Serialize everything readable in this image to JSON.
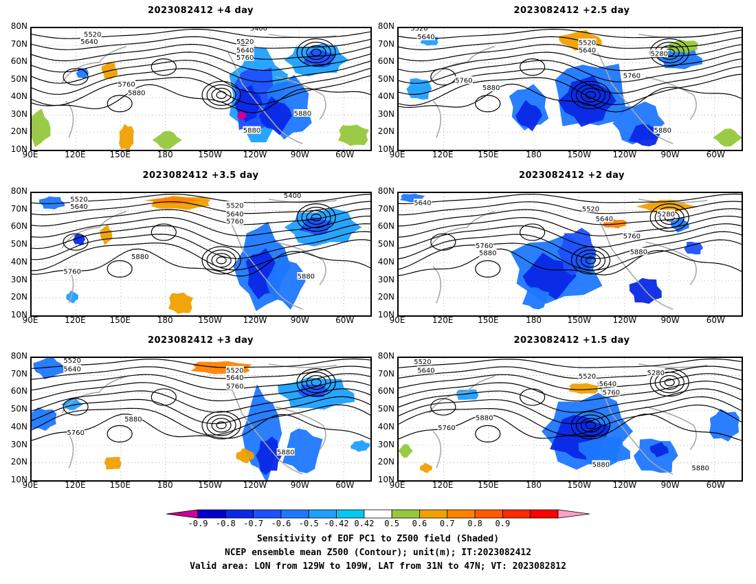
{
  "panels": [
    {
      "title": "2023082412 +4 day",
      "variant": 0
    },
    {
      "title": "2023082412 +2.5 day",
      "variant": 1
    },
    {
      "title": "2023082412 +3.5 day",
      "variant": 2
    },
    {
      "title": "2023082412 +2 day",
      "variant": 3
    },
    {
      "title": "2023082412 +3 day",
      "variant": 4
    },
    {
      "title": "2023082412 +1.5 day",
      "variant": 5
    }
  ],
  "lat_labels": [
    "80N",
    "70N",
    "60N",
    "50N",
    "40N",
    "30N",
    "20N",
    "10N"
  ],
  "lon_labels": [
    "90E",
    "120E",
    "150E",
    "180",
    "150W",
    "120W",
    "90W",
    "60W"
  ],
  "contour_labels": [
    "5520",
    "5640",
    "5760",
    "5880",
    "5400",
    "5280"
  ],
  "colorbar": {
    "ticks": [
      "-0.9",
      "-0.8",
      "-0.7",
      "-0.6",
      "-0.5",
      "-0.42",
      "0.42",
      "0.5",
      "0.6",
      "0.7",
      "0.8",
      "0.9"
    ],
    "colors": [
      "#cc0099",
      "#0000c8",
      "#0a28e6",
      "#1e50ff",
      "#1e78ff",
      "#1ea0ff",
      "#00c8f0",
      "#ffffff",
      "#96c83c",
      "#f0a000",
      "#ff8200",
      "#ff5a00",
      "#ff2800",
      "#ff0000",
      "#ffa0c8"
    ]
  },
  "caption": {
    "line1": "Sensitivity of EOF PC1 to Z500 field (Shaded)",
    "line2": "NCEP ensemble mean Z500 (Contour); unit(m); IT:2023082412",
    "line3": "Valid area: LON from 129W to 109W, LAT from 31N to 47N; VT: 2023082812"
  }
}
